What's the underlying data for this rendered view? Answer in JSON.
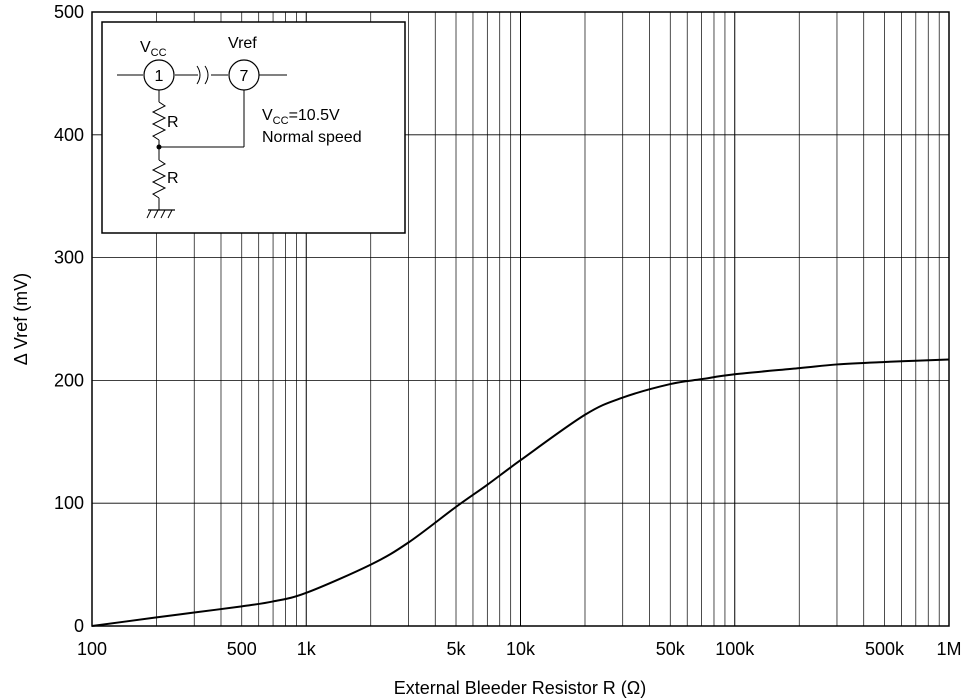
{
  "chart_data": {
    "type": "line",
    "xscale": "log",
    "xlim": [
      100,
      1000000
    ],
    "ylim": [
      0,
      500
    ],
    "xlabel": "External Bleeder Resistor  R  (Ω)",
    "ylabel": "Δ Vref  (mV)",
    "grid": true,
    "x_ticks": [
      {
        "value": 100,
        "label": "100"
      },
      {
        "value": 500,
        "label": "500"
      },
      {
        "value": 1000,
        "label": "1k"
      },
      {
        "value": 5000,
        "label": "5k"
      },
      {
        "value": 10000,
        "label": "10k"
      },
      {
        "value": 50000,
        "label": "50k"
      },
      {
        "value": 100000,
        "label": "100k"
      },
      {
        "value": 500000,
        "label": "500k"
      },
      {
        "value": 1000000,
        "label": "1M"
      }
    ],
    "y_ticks": [
      {
        "value": 0,
        "label": "0"
      },
      {
        "value": 100,
        "label": "100"
      },
      {
        "value": 200,
        "label": "200"
      },
      {
        "value": 300,
        "label": "300"
      },
      {
        "value": 400,
        "label": "400"
      },
      {
        "value": 500,
        "label": "500"
      }
    ],
    "series": [
      {
        "x": [
          100,
          200,
          300,
          500,
          700,
          1000,
          2000,
          3000,
          5000,
          7000,
          10000,
          20000,
          30000,
          50000,
          70000,
          100000,
          200000,
          300000,
          500000,
          700000,
          1000000
        ],
        "y": [
          0,
          7,
          11,
          16,
          20,
          27,
          50,
          68,
          97,
          115,
          135,
          172,
          186,
          197,
          201,
          205,
          210,
          213,
          215,
          216,
          217
        ],
        "color": "#000000"
      }
    ]
  },
  "inset": {
    "pin1_label": "1",
    "pin7_label": "7",
    "vcc_label_main": "V",
    "vcc_label_sub": "CC",
    "vref_label": "Vref",
    "resistor_top_label": "R",
    "resistor_bottom_label": "R",
    "condition_vcc_main": "V",
    "condition_vcc_sub": "CC",
    "condition_vcc_value": "=10.5V",
    "condition_speed": "Normal speed"
  }
}
